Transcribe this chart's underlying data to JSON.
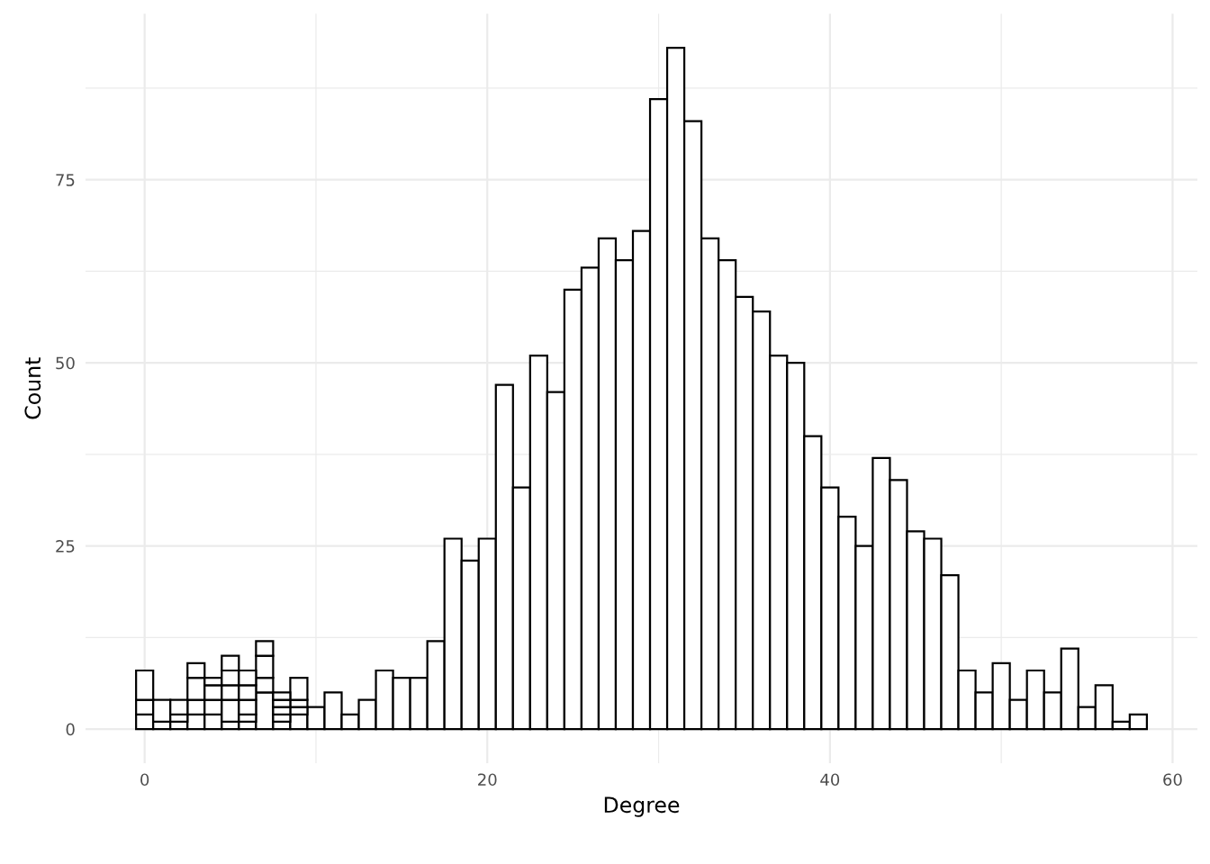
{
  "chart_data": {
    "type": "bar",
    "xlabel": "Degree",
    "ylabel": "Count",
    "stacked": true,
    "x": [
      0,
      1,
      2,
      3,
      4,
      5,
      6,
      7,
      8,
      9,
      10,
      11,
      12,
      13,
      14,
      15,
      16,
      17,
      18,
      19,
      20,
      21,
      22,
      23,
      24,
      25,
      26,
      27,
      28,
      29,
      30,
      31,
      32,
      33,
      34,
      35,
      36,
      37,
      38,
      39,
      40,
      41,
      42,
      43,
      44,
      45,
      46,
      47,
      48,
      49,
      50,
      51,
      52,
      53,
      54,
      55,
      56,
      57,
      58
    ],
    "series": [
      {
        "color": "#ffffff",
        "values": [
          2,
          1,
          1,
          2,
          2,
          1,
          1,
          5,
          1,
          2,
          3,
          5,
          2,
          4,
          8,
          7,
          7,
          12,
          26,
          23,
          26,
          47,
          33,
          51,
          46,
          60,
          63,
          67,
          64,
          68,
          86,
          93,
          83,
          67,
          64,
          59,
          57,
          51,
          50,
          40,
          33,
          29,
          25,
          37,
          34,
          27,
          26,
          21,
          8,
          5,
          9,
          4,
          8,
          5,
          11,
          3,
          6,
          1,
          2
        ]
      },
      {
        "color": "#ffffff",
        "values": [
          2,
          3,
          1,
          2,
          2,
          3,
          1,
          2,
          1,
          1,
          null,
          null,
          null,
          null,
          null,
          null,
          null,
          null,
          null,
          null,
          null,
          null,
          null,
          null,
          null,
          null,
          null,
          null,
          null,
          null,
          null,
          null,
          null,
          null,
          null,
          null,
          null,
          null,
          null,
          null,
          null,
          null,
          null,
          null,
          null,
          null,
          null,
          null,
          null,
          null,
          null,
          null,
          null,
          null,
          null,
          null,
          null,
          null,
          null
        ]
      },
      {
        "color": "#ffffff",
        "values": [
          4,
          null,
          2,
          3,
          2,
          2,
          2,
          3,
          1,
          1,
          null,
          null,
          null,
          null,
          null,
          null,
          null,
          null,
          null,
          null,
          null,
          null,
          null,
          null,
          null,
          null,
          null,
          null,
          null,
          null,
          null,
          null,
          null,
          null,
          null,
          null,
          null,
          null,
          null,
          null,
          null,
          null,
          null,
          null,
          null,
          null,
          null,
          null,
          null,
          null,
          null,
          null,
          null,
          null,
          null,
          null,
          null,
          null,
          null
        ]
      },
      {
        "color": "#ffffff",
        "values": [
          null,
          null,
          null,
          2,
          1,
          2,
          2,
          2,
          1,
          3,
          null,
          null,
          null,
          null,
          null,
          null,
          null,
          null,
          null,
          null,
          null,
          null,
          null,
          null,
          null,
          null,
          null,
          null,
          null,
          null,
          null,
          null,
          null,
          null,
          null,
          null,
          null,
          null,
          null,
          null,
          null,
          null,
          null,
          null,
          null,
          null,
          null,
          null,
          null,
          null,
          null,
          null,
          null,
          null,
          null,
          null,
          null,
          null,
          null
        ]
      },
      {
        "color": "#ffffff",
        "values": [
          null,
          null,
          null,
          null,
          null,
          2,
          2,
          null,
          1,
          null,
          null,
          null,
          null,
          null,
          null,
          null,
          null,
          null,
          null,
          null,
          null,
          null,
          null,
          null,
          null,
          null,
          null,
          null,
          null,
          null,
          null,
          null,
          null,
          null,
          null,
          null,
          null,
          null,
          null,
          null,
          null,
          null,
          null,
          null,
          null,
          null,
          null,
          null,
          null,
          null,
          null,
          null,
          null,
          null,
          null,
          null,
          null,
          null,
          null
        ]
      }
    ],
    "xlim": [
      -3.45,
      61.45
    ],
    "ylim": [
      -4.65,
      97.65
    ],
    "xticks": [
      0,
      {
        "value": 10,
        "label": null
      },
      20,
      {
        "value": 30,
        "label": null
      },
      40,
      {
        "value": 50,
        "label": null
      },
      60
    ],
    "yticks": [
      0,
      {
        "value": 12.5,
        "label": null
      },
      25,
      {
        "value": 37.5,
        "label": null
      },
      50,
      {
        "value": 62.5,
        "label": null
      },
      75,
      {
        "value": 87.5,
        "label": null
      }
    ],
    "grid": true
  }
}
